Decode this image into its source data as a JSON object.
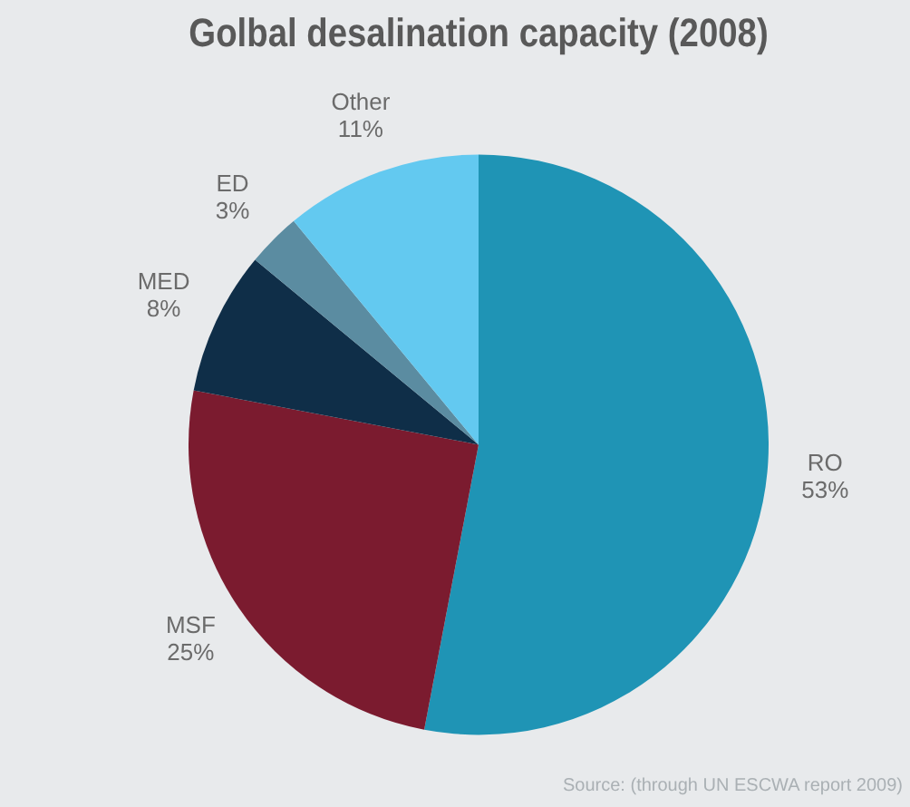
{
  "chart_data": {
    "type": "pie",
    "title": "Golbal desalination capacity (2008)",
    "categories": [
      "RO",
      "MSF",
      "MED",
      "ED",
      "Other"
    ],
    "values": [
      53,
      25,
      8,
      3,
      11
    ],
    "value_labels": [
      "53%",
      "25%",
      "8%",
      "3%",
      "11%"
    ],
    "colors": [
      "#1f94b5",
      "#7b1b2f",
      "#0f2e48",
      "#5b8ca1",
      "#63c9f0"
    ],
    "annotations": [
      "Source: (through UN ESCWA report 2009)"
    ]
  }
}
